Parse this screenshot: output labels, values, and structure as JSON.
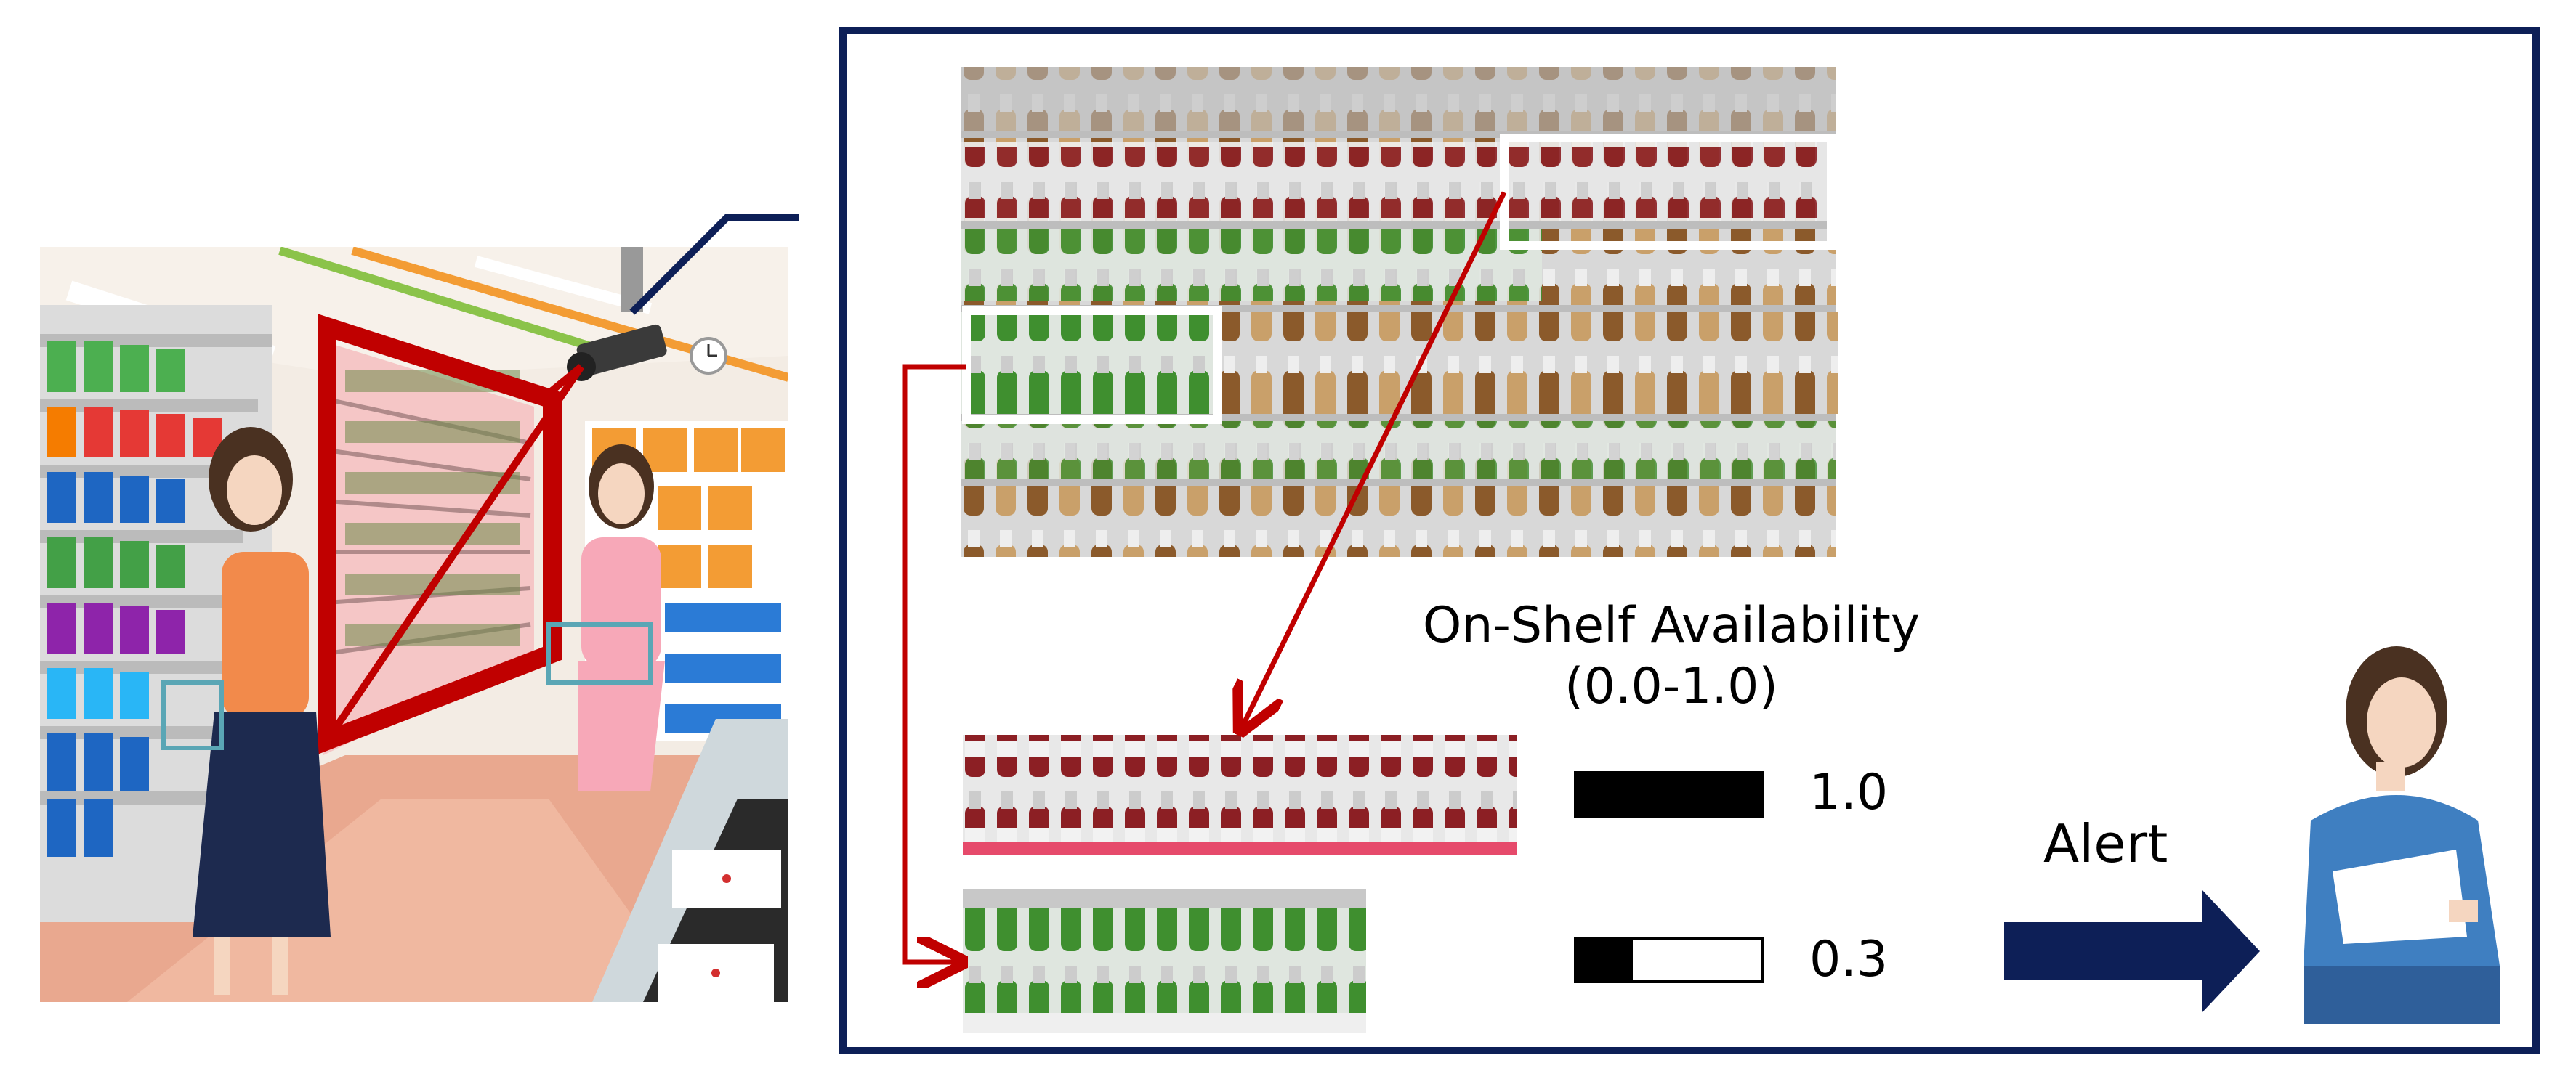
{
  "availability": {
    "title_line1": "On-Shelf Availability",
    "title_line2": "(0.0-1.0)",
    "full": {
      "label": "1.0",
      "value": 1.0
    },
    "low": {
      "label": "0.3",
      "value": 0.3
    }
  },
  "alert": {
    "label": "Alert"
  },
  "colors": {
    "frame": "#0d1f57",
    "highlight": "#c00000",
    "arrow": "#0d1f57"
  }
}
